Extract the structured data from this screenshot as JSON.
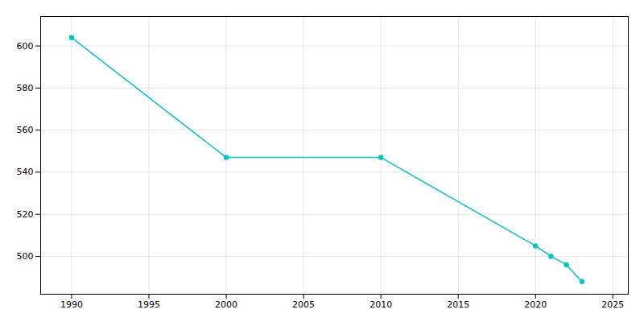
{
  "chart_data": {
    "type": "line",
    "x": [
      1990,
      2000,
      2010,
      2020,
      2021,
      2022,
      2023
    ],
    "values": [
      604,
      547,
      547,
      505,
      500,
      496,
      488
    ],
    "color": "#00C8C8",
    "marker": "circle",
    "xlim": [
      1988,
      2026
    ],
    "ylim": [
      482,
      614
    ],
    "xticks": [
      1990,
      1995,
      2000,
      2005,
      2010,
      2015,
      2020,
      2025
    ],
    "yticks": [
      500,
      520,
      540,
      560,
      580,
      600
    ],
    "grid": true
  }
}
